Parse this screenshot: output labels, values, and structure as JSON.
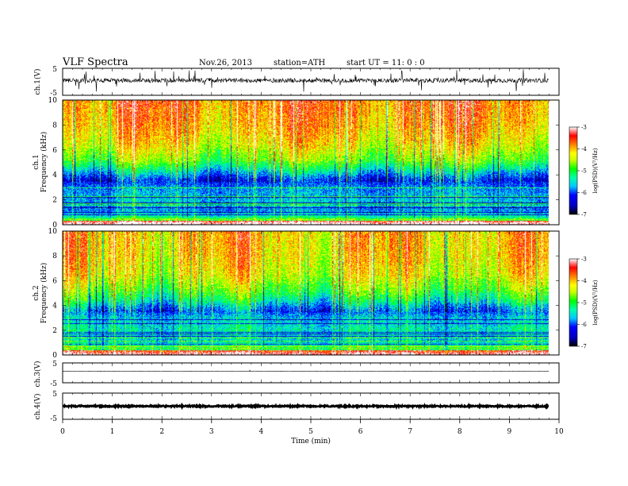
{
  "header": {
    "title": "VLF  Spectra",
    "date": "Nov.26, 2013",
    "station": "station=ATH",
    "start": "start  UT  =    11: 0  : 0"
  },
  "chart_data": [
    {
      "type": "line",
      "name": "waveform-ch1",
      "ylabel": "ch.1(V)",
      "ylim": [
        -5,
        5
      ],
      "yticks": [
        "5",
        "-5"
      ],
      "xlim": [
        0,
        10
      ],
      "trace": "noisy signal around ~+0.5 V with frequent spikes (sferics) of ±2–3 V, data ends at 9.8 min"
    },
    {
      "type": "heatmap",
      "name": "spectrogram-ch1",
      "ylabel": "ch.1\nFrequency  (kHz)",
      "ylim": [
        0,
        10
      ],
      "yticks": [
        "10",
        "8",
        "6",
        "4",
        "2",
        "0"
      ],
      "xlim": [
        0,
        10
      ],
      "data_end_min": 9.8,
      "color_scale": {
        "label": "log(PSD)(V²/Hz)",
        "range": [
          -7,
          -3
        ],
        "ticks": [
          "-3",
          "-4",
          "-5",
          "-6",
          "-7"
        ]
      },
      "band_profile_kHz_to_logPSD": [
        [
          0.2,
          -3.4
        ],
        [
          0.6,
          -5.2
        ],
        [
          1.2,
          -5.8
        ],
        [
          2.0,
          -5.6
        ],
        [
          3.0,
          -5.8
        ],
        [
          3.6,
          -6.2
        ],
        [
          4.4,
          -5.4
        ],
        [
          5.2,
          -4.7
        ],
        [
          6.5,
          -4.2
        ],
        [
          8.0,
          -3.9
        ],
        [
          10.0,
          -3.7
        ]
      ]
    },
    {
      "type": "heatmap",
      "name": "spectrogram-ch2",
      "ylabel": "ch.2\nFrequency  (kHz)",
      "ylim": [
        0,
        10
      ],
      "yticks": [
        "10",
        "8",
        "6",
        "4",
        "2",
        "0"
      ],
      "xlim": [
        0,
        10
      ],
      "data_end_min": 9.8,
      "color_scale": {
        "label": "log(PSD)(V²/Hz)",
        "range": [
          -7,
          -3
        ],
        "ticks": [
          "-3",
          "-4",
          "-5",
          "-6",
          "-7"
        ]
      },
      "band_profile_kHz_to_logPSD": [
        [
          0.2,
          -3.6
        ],
        [
          0.6,
          -5.0
        ],
        [
          1.2,
          -5.6
        ],
        [
          2.0,
          -5.4
        ],
        [
          3.0,
          -5.6
        ],
        [
          3.6,
          -6.0
        ],
        [
          4.4,
          -5.3
        ],
        [
          5.2,
          -4.8
        ],
        [
          6.5,
          -4.3
        ],
        [
          8.0,
          -4.1
        ],
        [
          10.0,
          -4.0
        ]
      ]
    },
    {
      "type": "line",
      "name": "waveform-ch3",
      "ylabel": "ch.3(V)",
      "ylim": [
        -5,
        5
      ],
      "yticks": [
        "5",
        "-5"
      ],
      "xlim": [
        0,
        10
      ],
      "trace": "flat line near +0.5 V"
    },
    {
      "type": "line",
      "name": "waveform-ch4",
      "ylabel": "ch.4(V)",
      "ylim": [
        -5,
        5
      ],
      "yticks": [
        "5",
        "-5"
      ],
      "xlim": [
        0,
        10
      ],
      "trace": "thick dense line near +0 V"
    }
  ],
  "xaxis": {
    "label": "Time  (min)",
    "ticks": [
      "0",
      "1",
      "2",
      "3",
      "4",
      "5",
      "6",
      "7",
      "8",
      "9",
      "10"
    ]
  },
  "colors": {
    "colormap": [
      "#000000",
      "#0000ff",
      "#00ffff",
      "#00ff00",
      "#ffff00",
      "#ff8000",
      "#ff0000",
      "#ffffff"
    ],
    "trace": "#000000"
  }
}
